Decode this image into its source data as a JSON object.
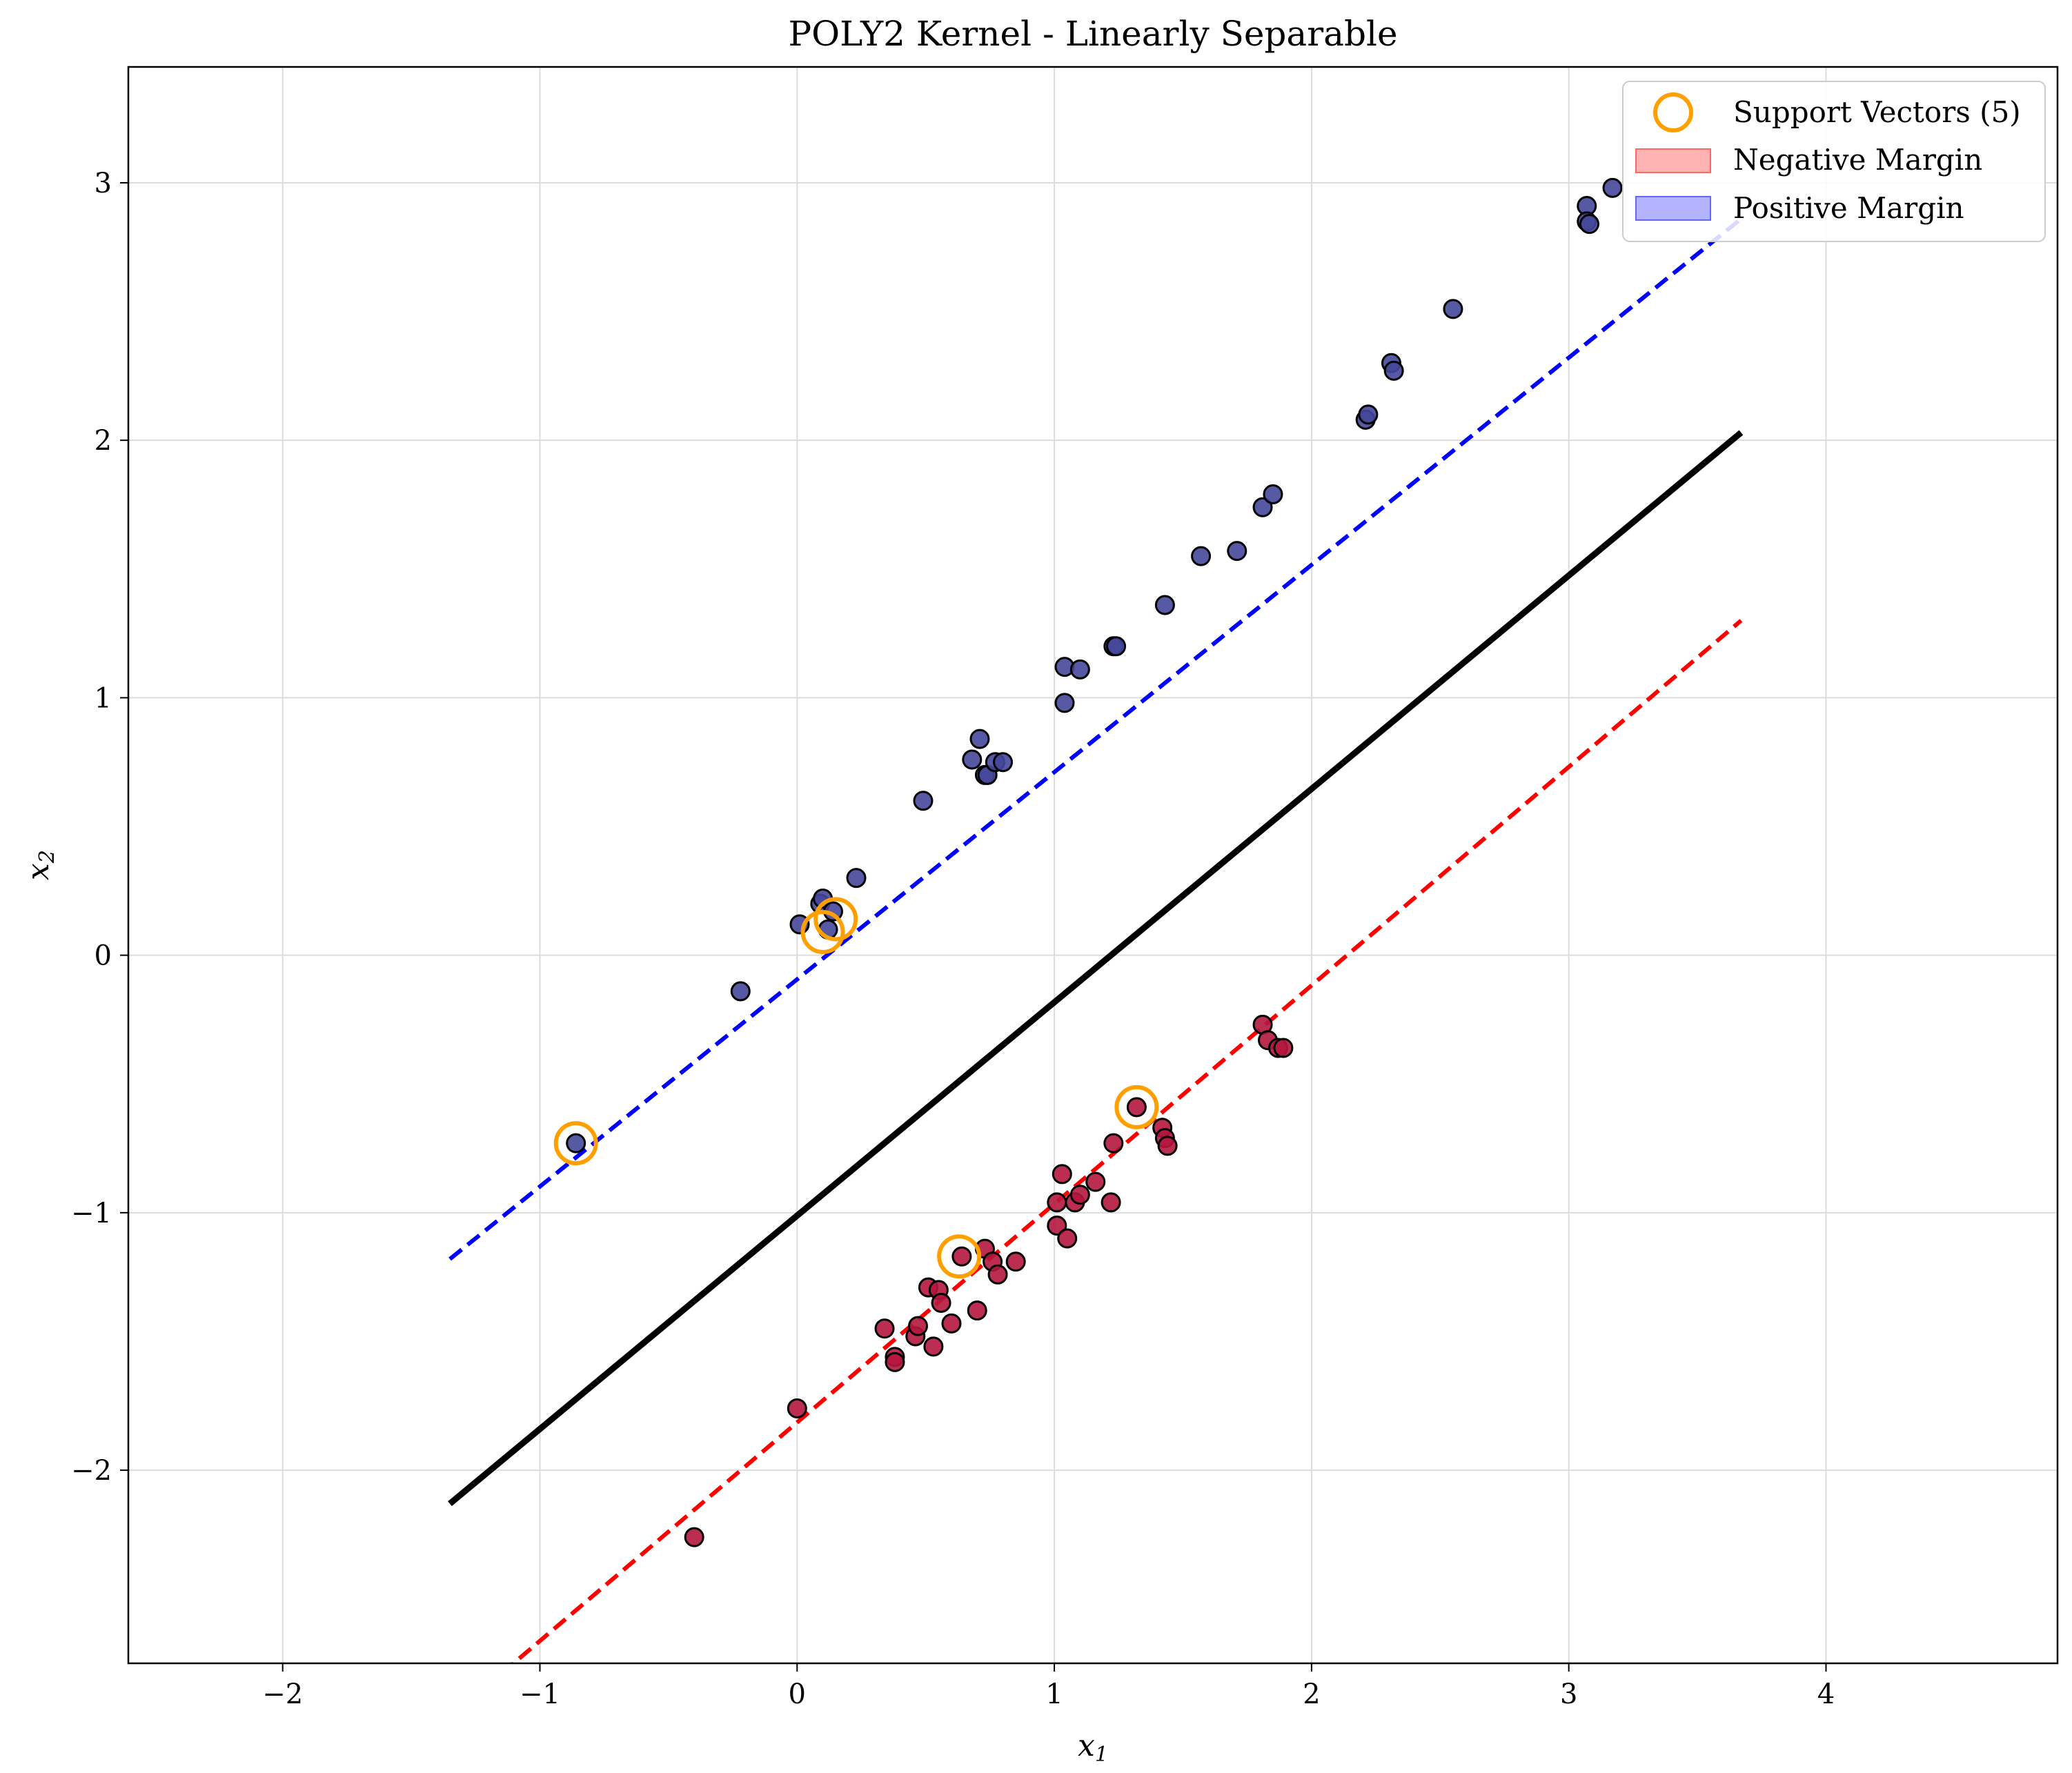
{
  "chart_data": {
    "type": "scatter",
    "title": "POLY2 Kernel - Linearly Separable",
    "xlabel": "x",
    "xlabel_sub": "1",
    "ylabel": "x",
    "ylabel_sub": "2",
    "xlim": [
      -2.6,
      4.9
    ],
    "ylim": [
      -2.75,
      3.45
    ],
    "xticks": [
      -2,
      -1,
      0,
      1,
      2,
      3,
      4
    ],
    "xtick_labels": [
      "−2",
      "−1",
      "0",
      "1",
      "2",
      "3",
      "4"
    ],
    "yticks": [
      -2,
      -1,
      0,
      1,
      2,
      3
    ],
    "ytick_labels": [
      "−2",
      "−1",
      "0",
      "1",
      "2",
      "3"
    ],
    "grid": true,
    "legend_position": "top-right",
    "legend": [
      {
        "label": "Support Vectors (5)",
        "kind": "circle",
        "color": "#ff9f00"
      },
      {
        "label": "Negative Margin",
        "kind": "patch",
        "color": "#ffb3b3",
        "edge": "#ff6666"
      },
      {
        "label": "Positive Margin",
        "kind": "patch",
        "color": "#b3b3ff",
        "edge": "#6666ff"
      }
    ],
    "lines": [
      {
        "name": "decision-boundary",
        "x": [
          -1.35,
          3.67
        ],
        "y": [
          -2.13,
          2.03
        ],
        "color": "#000000",
        "dash": false
      },
      {
        "name": "positive-margin",
        "x": [
          -1.35,
          3.67
        ],
        "y": [
          -1.18,
          2.86
        ],
        "color": "#0000ff",
        "dash": true
      },
      {
        "name": "negative-margin",
        "x": [
          -1.35,
          3.67
        ],
        "y": [
          -2.96,
          1.3
        ],
        "color": "#ff0000",
        "dash": true
      }
    ],
    "series": [
      {
        "name": "Positive class",
        "color": "#45479a",
        "x": [
          -0.86,
          -0.22,
          0.01,
          0.09,
          0.1,
          0.12,
          0.14,
          0.23,
          0.49,
          0.68,
          0.71,
          0.73,
          0.74,
          0.77,
          0.8,
          1.04,
          1.04,
          1.1,
          1.23,
          1.24,
          1.43,
          1.57,
          1.71,
          1.81,
          1.85,
          2.21,
          2.22,
          2.31,
          2.32,
          2.55,
          3.07,
          3.07,
          3.08,
          3.17
        ],
        "y": [
          -0.73,
          -0.14,
          0.12,
          0.2,
          0.22,
          0.1,
          0.17,
          0.3,
          0.6,
          0.76,
          0.84,
          0.7,
          0.7,
          0.75,
          0.75,
          0.98,
          1.12,
          1.11,
          1.2,
          1.2,
          1.36,
          1.55,
          1.57,
          1.74,
          1.79,
          2.08,
          2.1,
          2.3,
          2.27,
          2.51,
          2.91,
          2.85,
          2.84,
          2.98
        ]
      },
      {
        "name": "Negative class",
        "color": "#b5173e",
        "x": [
          -0.4,
          0.0,
          0.34,
          0.38,
          0.38,
          0.46,
          0.47,
          0.51,
          0.53,
          0.55,
          0.56,
          0.6,
          0.64,
          0.7,
          0.73,
          0.76,
          0.78,
          0.85,
          1.01,
          1.01,
          1.03,
          1.05,
          1.08,
          1.1,
          1.16,
          1.22,
          1.23,
          1.32,
          1.42,
          1.43,
          1.44,
          1.81,
          1.83,
          1.87,
          1.89
        ],
        "y": [
          -2.26,
          -1.76,
          -1.45,
          -1.56,
          -1.58,
          -1.48,
          -1.44,
          -1.29,
          -1.52,
          -1.3,
          -1.35,
          -1.43,
          -1.17,
          -1.38,
          -1.14,
          -1.19,
          -1.24,
          -1.19,
          -0.96,
          -1.05,
          -0.85,
          -1.1,
          -0.96,
          -0.93,
          -0.88,
          -0.96,
          -0.73,
          -0.59,
          -0.67,
          -0.71,
          -0.74,
          -0.27,
          -0.33,
          -0.36,
          -0.36
        ]
      }
    ],
    "support_vectors": {
      "x": [
        -0.86,
        0.1,
        0.15,
        0.63,
        1.32
      ],
      "y": [
        -0.73,
        0.09,
        0.14,
        -1.17,
        -0.59
      ]
    }
  }
}
